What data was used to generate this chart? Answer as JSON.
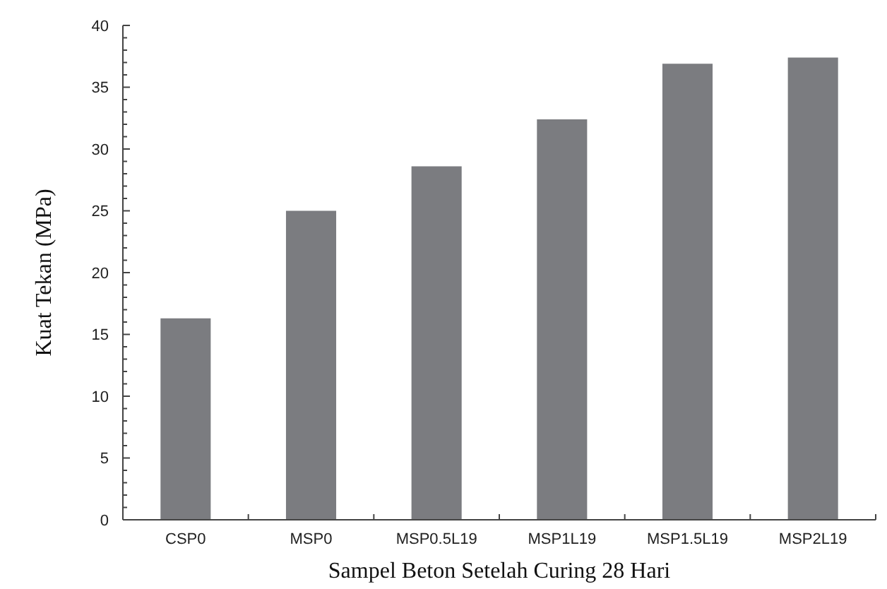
{
  "chart_data": {
    "type": "bar",
    "xlabel": "Sampel Beton Setelah Curing 28 Hari",
    "ylabel": "Kuat Tekan (MPa)",
    "categories": [
      "CSP0",
      "MSP0",
      "MSP0.5L19",
      "MSP1L19",
      "MSP1.5L19",
      "MSP2L19"
    ],
    "values": [
      16.3,
      25.0,
      28.6,
      32.4,
      36.9,
      37.4
    ],
    "color": "#7b7c80",
    "ylim": [
      0,
      40
    ],
    "yticks": [
      0,
      {
        "value": 1,
        "label": null
      },
      {
        "value": 2,
        "label": null
      },
      {
        "value": 3,
        "label": null
      },
      {
        "value": 4,
        "label": null
      },
      5,
      {
        "value": 6,
        "label": null
      },
      {
        "value": 7,
        "label": null
      },
      {
        "value": 8,
        "label": null
      },
      {
        "value": 9,
        "label": null
      },
      10,
      {
        "value": 11,
        "label": null
      },
      {
        "value": 12,
        "label": null
      },
      {
        "value": 13,
        "label": null
      },
      {
        "value": 14,
        "label": null
      },
      15,
      {
        "value": 16,
        "label": null
      },
      {
        "value": 17,
        "label": null
      },
      {
        "value": 18,
        "label": null
      },
      {
        "value": 19,
        "label": null
      },
      20,
      {
        "value": 21,
        "label": null
      },
      {
        "value": 22,
        "label": null
      },
      {
        "value": 23,
        "label": null
      },
      {
        "value": 24,
        "label": null
      },
      25,
      {
        "value": 26,
        "label": null
      },
      {
        "value": 27,
        "label": null
      },
      {
        "value": 28,
        "label": null
      },
      {
        "value": 29,
        "label": null
      },
      30,
      {
        "value": 31,
        "label": null
      },
      {
        "value": 32,
        "label": null
      },
      {
        "value": 33,
        "label": null
      },
      {
        "value": 34,
        "label": null
      },
      35,
      {
        "value": 36,
        "label": null
      },
      {
        "value": 37,
        "label": null
      },
      {
        "value": 38,
        "label": null
      },
      {
        "value": 39,
        "label": null
      },
      40
    ],
    "grid": false
  }
}
